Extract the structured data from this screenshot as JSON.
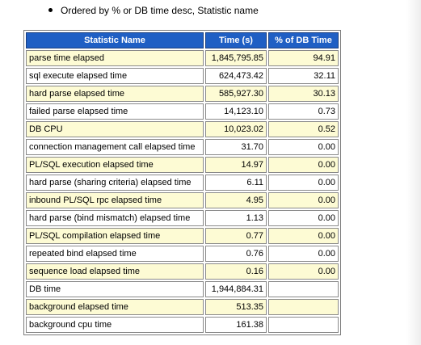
{
  "intro": {
    "bullet": "Ordered by % or DB time desc, Statistic name"
  },
  "table": {
    "headers": {
      "name": "Statistic Name",
      "time": "Time (s)",
      "pct": "% of DB Time"
    },
    "rows": [
      {
        "name": "parse time elapsed",
        "time": "1,845,795.85",
        "pct": "94.91"
      },
      {
        "name": "sql execute elapsed time",
        "time": "624,473.42",
        "pct": "32.11"
      },
      {
        "name": "hard parse elapsed time",
        "time": "585,927.30",
        "pct": "30.13"
      },
      {
        "name": "failed parse elapsed time",
        "time": "14,123.10",
        "pct": "0.73"
      },
      {
        "name": "DB CPU",
        "time": "10,023.02",
        "pct": "0.52"
      },
      {
        "name": "connection management call elapsed time",
        "time": "31.70",
        "pct": "0.00"
      },
      {
        "name": "PL/SQL execution elapsed time",
        "time": "14.97",
        "pct": "0.00"
      },
      {
        "name": "hard parse (sharing criteria) elapsed time",
        "time": "6.11",
        "pct": "0.00"
      },
      {
        "name": "inbound PL/SQL rpc elapsed time",
        "time": "4.95",
        "pct": "0.00"
      },
      {
        "name": "hard parse (bind mismatch) elapsed time",
        "time": "1.13",
        "pct": "0.00"
      },
      {
        "name": "PL/SQL compilation elapsed time",
        "time": "0.77",
        "pct": "0.00"
      },
      {
        "name": "repeated bind elapsed time",
        "time": "0.76",
        "pct": "0.00"
      },
      {
        "name": "sequence load elapsed time",
        "time": "0.16",
        "pct": "0.00"
      },
      {
        "name": "DB time",
        "time": "1,944,884.31",
        "pct": ""
      },
      {
        "name": "background elapsed time",
        "time": "513.35",
        "pct": ""
      },
      {
        "name": "background cpu time",
        "time": "161.38",
        "pct": ""
      }
    ]
  }
}
